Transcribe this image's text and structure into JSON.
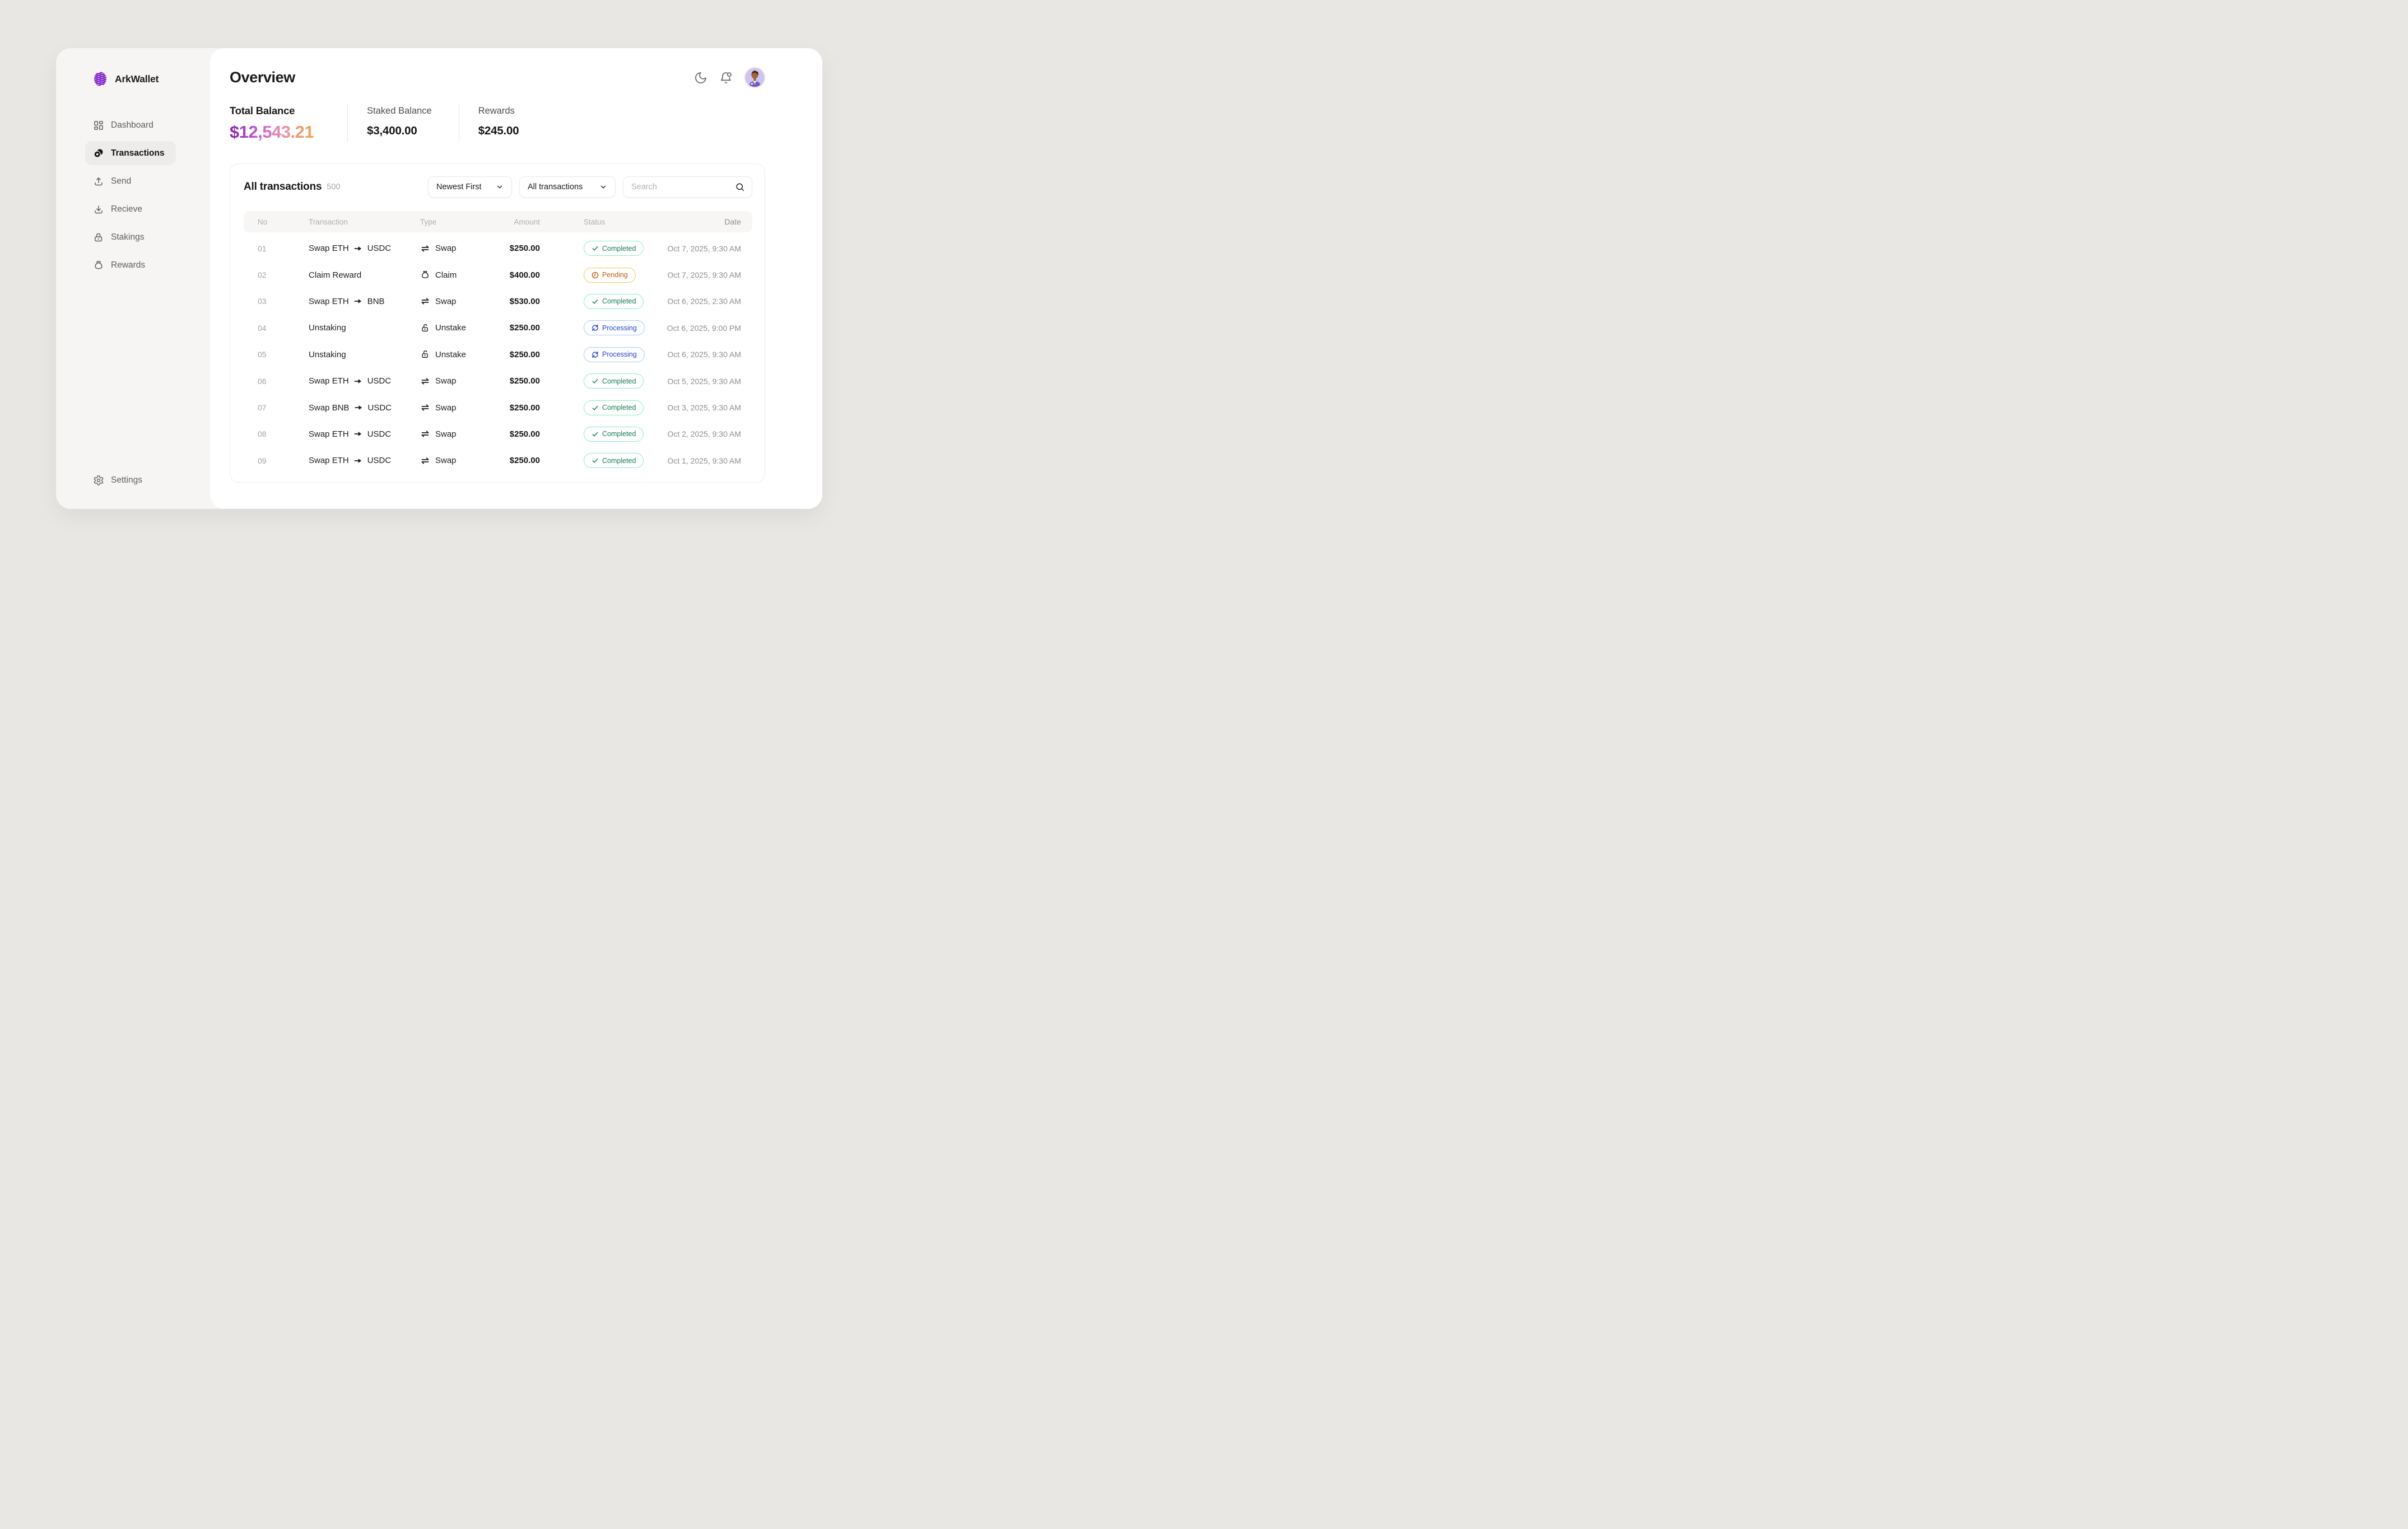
{
  "brand": {
    "name": "ArkWallet",
    "icon": "wave-logo-icon",
    "accent": "#7d1cc9"
  },
  "sidebar": {
    "items": [
      {
        "label": "Dashboard",
        "icon": "dashboard-icon",
        "active": false
      },
      {
        "label": "Transactions",
        "icon": "transactions-coins-icon",
        "active": true
      },
      {
        "label": "Send",
        "icon": "send-upload-icon",
        "active": false
      },
      {
        "label": "Recieve",
        "icon": "receive-download-icon",
        "active": false
      },
      {
        "label": "Stakings",
        "icon": "padlock-icon",
        "active": false
      },
      {
        "label": "Rewards",
        "icon": "money-bag-icon",
        "active": false
      }
    ],
    "settings": {
      "label": "Settings",
      "icon": "settings-gear-icon"
    }
  },
  "header": {
    "title": "Overview",
    "action_icons": [
      "moon-icon",
      "bell-icon",
      "avatar"
    ]
  },
  "stats": [
    {
      "label": "Total Balance",
      "value": "$12,543.21",
      "style": "gradient"
    },
    {
      "label": "Staked Balance",
      "value": "$3,400.00",
      "style": "plain"
    },
    {
      "label": "Rewards",
      "value": "$245.00",
      "style": "plain"
    }
  ],
  "panel": {
    "title": "All transactions",
    "count": "500",
    "sort": {
      "value": "Newest First",
      "icon": "chevron-down-icon"
    },
    "filter": {
      "value": "All transactions",
      "icon": "chevron-down-icon"
    },
    "search": {
      "placeholder": "Search",
      "icon": "search-icon"
    },
    "columns": [
      "No",
      "Transaction",
      "Type",
      "Amount",
      "Status",
      "Date"
    ],
    "rows": [
      {
        "no": "01",
        "transaction": "Swap ETH → USDC",
        "type": "Swap",
        "type_icon": "swap-icon",
        "amount": "$250.00",
        "status": "Completed",
        "date": "Oct 7, 2025, 9:30 AM"
      },
      {
        "no": "02",
        "transaction": "Claim Reward",
        "type": "Claim",
        "type_icon": "claim-icon",
        "amount": "$400.00",
        "status": "Pending",
        "date": "Oct 7, 2025, 9:30 AM"
      },
      {
        "no": "03",
        "transaction": "Swap ETH → BNB",
        "type": "Swap",
        "type_icon": "swap-icon",
        "amount": "$530.00",
        "status": "Completed",
        "date": "Oct 6, 2025, 2:30 AM"
      },
      {
        "no": "04",
        "transaction": "Unstaking",
        "type": "Unstake",
        "type_icon": "unstake-icon",
        "amount": "$250.00",
        "status": "Processing",
        "date": "Oct 6, 2025, 9:00 PM"
      },
      {
        "no": "05",
        "transaction": "Unstaking",
        "type": "Unstake",
        "type_icon": "unstake-icon",
        "amount": "$250.00",
        "status": "Processing",
        "date": "Oct 6, 2025, 9:30 AM"
      },
      {
        "no": "06",
        "transaction": "Swap ETH → USDC",
        "type": "Swap",
        "type_icon": "swap-icon",
        "amount": "$250.00",
        "status": "Completed",
        "date": "Oct 5, 2025, 9:30 AM"
      },
      {
        "no": "07",
        "transaction": "Swap BNB → USDC",
        "type": "Swap",
        "type_icon": "swap-icon",
        "amount": "$250.00",
        "status": "Completed",
        "date": "Oct 3, 2025, 9:30 AM"
      },
      {
        "no": "08",
        "transaction": "Swap ETH → USDC",
        "type": "Swap",
        "type_icon": "swap-icon",
        "amount": "$250.00",
        "status": "Completed",
        "date": "Oct 2, 2025, 9:30 AM"
      },
      {
        "no": "09",
        "transaction": "Swap ETH → USDC",
        "type": "Swap",
        "type_icon": "swap-icon",
        "amount": "$250.00",
        "status": "Completed",
        "date": "Oct 1, 2025, 9:30 AM"
      }
    ]
  },
  "icons_legend": {
    "swap-icon": "⇌",
    "claim-icon": "money-bag",
    "unstake-icon": "open-padlock",
    "check-icon": "✓",
    "clock-icon": "clock-face",
    "sync-icon": "circular-arrows",
    "arrow-right-icon": "→",
    "chevron-down-icon": "∨",
    "search-icon": "magnifier",
    "moon-icon": "crescent",
    "bell-icon": "bell-with-dot"
  },
  "colors": {
    "accent_purple": "#7d1cc9",
    "balance_gradient": [
      "#8b1fb4",
      "#c95fd6",
      "#ec92a4",
      "#f2a44a"
    ],
    "status": {
      "Completed": {
        "text": "#177a55",
        "border": "#8feac2"
      },
      "Pending": {
        "text": "#c05a14",
        "border": "#f5c94e"
      },
      "Processing": {
        "text": "#2741c4",
        "border": "#a9c9f6"
      }
    }
  }
}
